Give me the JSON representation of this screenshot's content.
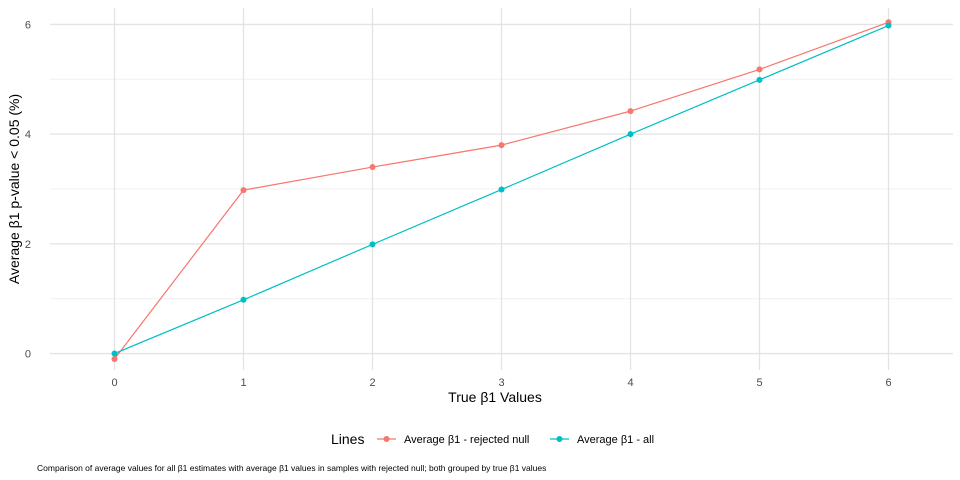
{
  "chart_data": {
    "type": "line",
    "x": [
      0,
      1,
      2,
      3,
      4,
      5,
      6
    ],
    "xlabel": "True β1 Values",
    "ylabel": "Average β1 p-value < 0.05 (%)",
    "xlim": [
      -0.5,
      6.5
    ],
    "ylim": [
      -0.3,
      6.3
    ],
    "x_ticks": [
      "0",
      "1",
      "2",
      "3",
      "4",
      "5",
      "6"
    ],
    "y_ticks": [
      "0",
      "2",
      "4",
      "6"
    ],
    "y_tick_values": [
      0,
      2,
      4,
      6
    ],
    "grid": true,
    "legend_position": "bottom",
    "legend_title": "Lines",
    "series": [
      {
        "name": "Average β1 - rejected null",
        "color": "#F8766D",
        "values": [
          -0.1,
          2.98,
          3.4,
          3.8,
          4.42,
          5.18,
          6.04
        ]
      },
      {
        "name": "Average β1 - all",
        "color": "#00BFC4",
        "values": [
          0.0,
          0.98,
          1.99,
          2.99,
          4.0,
          4.99,
          5.98
        ]
      }
    ],
    "caption": "Comparison of average values for all β1 estimates with average β1 values in samples with rejected null; both grouped by true β1 values"
  }
}
